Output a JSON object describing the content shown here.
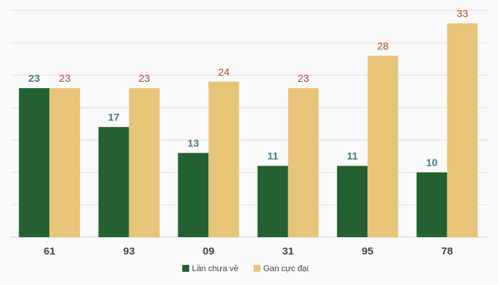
{
  "chart_data": {
    "type": "bar",
    "categories": [
      "61",
      "93",
      "09",
      "31",
      "95",
      "78"
    ],
    "series": [
      {
        "name": "Lần chưa về",
        "values": [
          23,
          17,
          13,
          11,
          11,
          10
        ],
        "color": "#236133",
        "label_color": "#4a7a8c"
      },
      {
        "name": "Gan cực đại",
        "values": [
          23,
          23,
          24,
          23,
          28,
          33
        ],
        "color": "#e8c479",
        "label_color": "#a0522d"
      }
    ],
    "title": "",
    "xlabel": "",
    "ylabel": "",
    "ylim": [
      0,
      35
    ],
    "grid": true,
    "legend": "bottom-center"
  }
}
